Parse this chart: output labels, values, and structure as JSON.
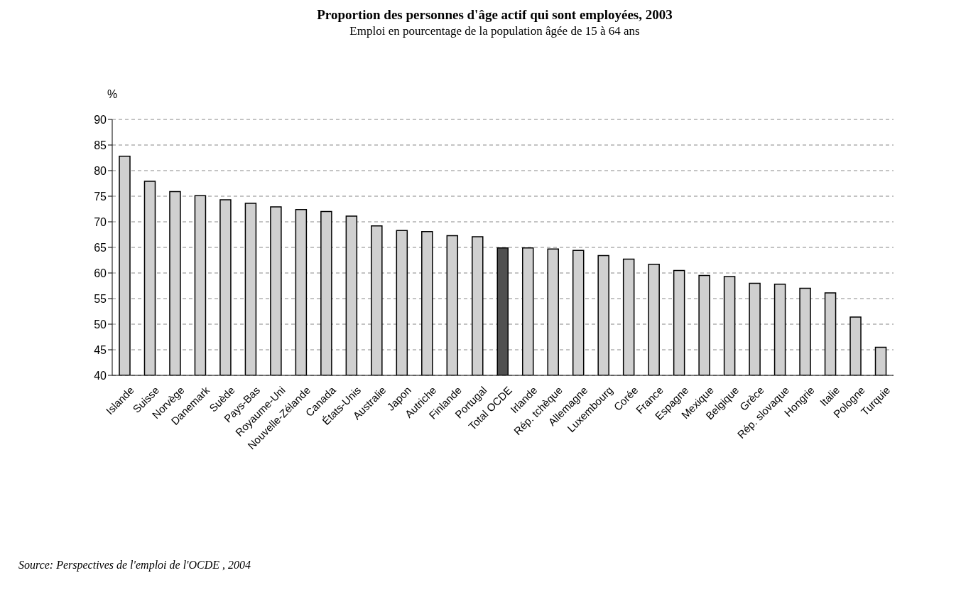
{
  "chart_data": {
    "type": "bar",
    "title": "Proportion des personnes d'âge actif qui sont employées, 2003",
    "subtitle": "Emploi en pourcentage de la population âgée de 15 à 64 ans",
    "ylabel": "%",
    "categories": [
      "Islande",
      "Suisse",
      "Norvège",
      "Danemark",
      "Suède",
      "Pays-Bas",
      "Royaume-Uni",
      "Nouvelle-Zélande",
      "Canada",
      "États-Unis",
      "Australie",
      "Japon",
      "Autriche",
      "Finlande",
      "Portugal",
      "Total OCDE",
      "Irlande",
      "Rép. tchèque",
      "Allemagne",
      "Luxembourg",
      "Corée",
      "France",
      "Espagne",
      "Mexique",
      "Belgique",
      "Grèce",
      "Rép. slovaque",
      "Hongrie",
      "Italie",
      "Pologne",
      "Turquie"
    ],
    "values": [
      82.8,
      77.9,
      75.9,
      75.1,
      74.3,
      73.6,
      72.9,
      72.4,
      72.0,
      71.1,
      69.2,
      68.3,
      68.1,
      67.3,
      67.1,
      64.9,
      64.9,
      64.7,
      64.4,
      63.4,
      62.7,
      61.7,
      60.5,
      59.5,
      59.3,
      58.0,
      57.8,
      57.0,
      56.1,
      51.4,
      45.5
    ],
    "colors": [
      "#d0d0d0",
      "#d0d0d0",
      "#d0d0d0",
      "#d0d0d0",
      "#d0d0d0",
      "#d0d0d0",
      "#d0d0d0",
      "#d0d0d0",
      "#d0d0d0",
      "#d0d0d0",
      "#d0d0d0",
      "#d0d0d0",
      "#d0d0d0",
      "#d0d0d0",
      "#d0d0d0",
      "#505050",
      "#d0d0d0",
      "#d0d0d0",
      "#d0d0d0",
      "#d0d0d0",
      "#d0d0d0",
      "#d0d0d0",
      "#d0d0d0",
      "#d0d0d0",
      "#d0d0d0",
      "#d0d0d0",
      "#d0d0d0",
      "#d0d0d0",
      "#d0d0d0",
      "#d0d0d0",
      "#d0d0d0"
    ],
    "ylim": [
      40,
      90
    ],
    "yticks": [
      40,
      45,
      50,
      55,
      60,
      65,
      70,
      75,
      80,
      85,
      90
    ],
    "grid": "y",
    "legend": false,
    "annotations": [
      "Source:  Perspectives de l'emploi de l'OCDE , 2004"
    ]
  }
}
